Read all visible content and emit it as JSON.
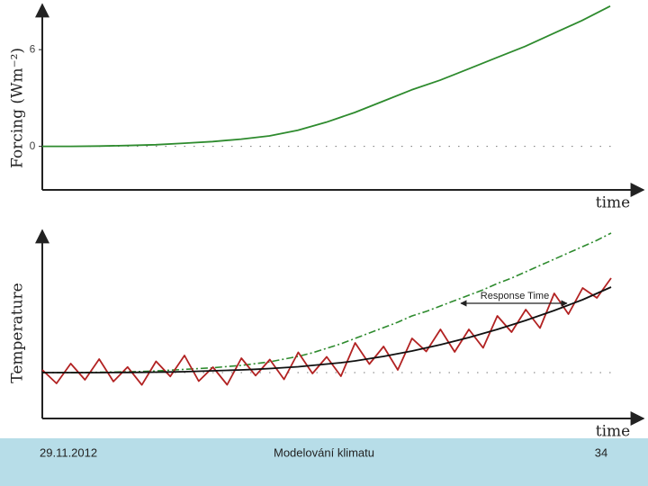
{
  "chart_data": [
    {
      "type": "line",
      "ylabel": "Forcing (Wm⁻²)",
      "xlabel": "time",
      "x": [
        0,
        1,
        2,
        3,
        4,
        5,
        6,
        7,
        8,
        9,
        10,
        11,
        12,
        13,
        14,
        15,
        16,
        17,
        18,
        19,
        20
      ],
      "xlim": [
        0,
        20
      ],
      "ylim": [
        -2.7,
        8.8
      ],
      "yticks": [
        0,
        6
      ],
      "hline": 0,
      "grid": false,
      "series": [
        {
          "color": "#2e8b2e",
          "dash": "solid",
          "values": [
            0,
            0,
            0.02,
            0.05,
            0.1,
            0.2,
            0.3,
            0.45,
            0.65,
            1.0,
            1.5,
            2.1,
            2.8,
            3.5,
            4.1,
            4.8,
            5.5,
            6.2,
            7.0,
            7.8,
            8.7
          ]
        }
      ]
    },
    {
      "type": "line",
      "ylabel": "Temperature",
      "xlabel": "time",
      "annotation": "Response Time",
      "x": [
        0,
        1,
        2,
        3,
        4,
        5,
        6,
        7,
        8,
        9,
        10,
        11,
        12,
        13,
        14,
        15,
        16,
        17,
        18,
        19,
        20,
        21,
        22,
        23,
        24,
        25,
        26,
        27,
        28,
        29,
        30,
        31,
        32,
        33,
        34,
        35,
        36,
        37,
        38,
        39,
        40
      ],
      "xlim": [
        0,
        40
      ],
      "ylim": [
        -5.1,
        15.8
      ],
      "hline": 0,
      "grid": false,
      "series": [
        {
          "color": "#2e8b2e",
          "dash": "dashdot",
          "values": [
            0,
            0,
            0,
            0.02,
            0.04,
            0.06,
            0.09,
            0.13,
            0.18,
            0.27,
            0.36,
            0.45,
            0.54,
            0.67,
            0.8,
            1.0,
            1.2,
            1.5,
            1.8,
            2.2,
            2.7,
            3.2,
            3.8,
            4.4,
            5.0,
            5.6,
            6.3,
            6.8,
            7.4,
            8.0,
            8.6,
            9.2,
            9.9,
            10.5,
            11.2,
            11.9,
            12.6,
            13.3,
            14.0,
            14.7,
            15.5
          ]
        },
        {
          "color": "#b22222",
          "dash": "solid",
          "values": [
            0.3,
            -1.2,
            1.0,
            -0.8,
            1.5,
            -0.99,
            0.62,
            -1.37,
            1.25,
            -0.43,
            1.9,
            -0.95,
            0.6,
            -1.35,
            1.6,
            -0.33,
            1.45,
            -0.75,
            2.25,
            -0.1,
            1.75,
            -0.4,
            3.3,
            0.95,
            2.9,
            0.3,
            3.8,
            2.35,
            4.8,
            2.3,
            4.8,
            2.75,
            6.3,
            4.5,
            7.0,
            4.95,
            8.8,
            6.5,
            9.4,
            8.3,
            10.5
          ]
        },
        {
          "color": "#111111",
          "dash": "solid",
          "values": [
            0,
            0,
            0,
            0,
            0,
            0.01,
            0.02,
            0.03,
            0.05,
            0.07,
            0.1,
            0.15,
            0.2,
            0.25,
            0.3,
            0.37,
            0.45,
            0.55,
            0.65,
            0.8,
            0.95,
            1.1,
            1.3,
            1.55,
            1.8,
            2.1,
            2.4,
            2.75,
            3.1,
            3.5,
            3.9,
            4.35,
            4.8,
            5.3,
            5.8,
            6.35,
            6.9,
            7.5,
            8.1,
            8.8,
            9.5
          ]
        }
      ]
    }
  ],
  "footer": {
    "date": "29.11.2012",
    "title": "Modelování klimatu",
    "page": "34"
  }
}
